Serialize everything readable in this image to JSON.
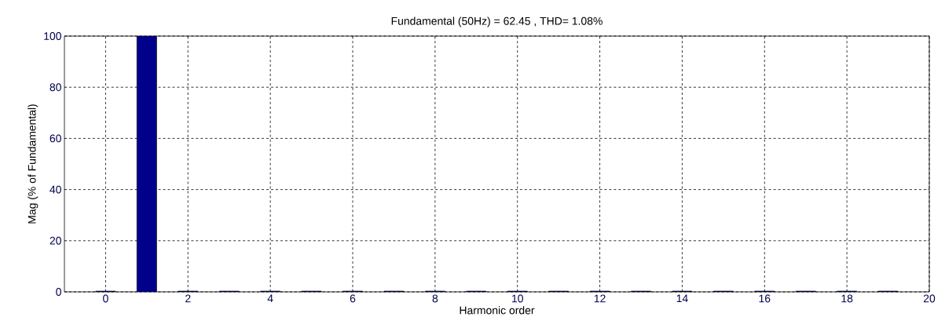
{
  "chart_data": {
    "type": "bar",
    "title": "Fundamental (50Hz) = 62.45 , THD= 1.08%",
    "xlabel": "Harmonic order",
    "ylabel": "Mag (% of Fundamental)",
    "x": [
      0,
      1,
      2,
      3,
      4,
      5,
      6,
      7,
      8,
      9,
      10,
      11,
      12,
      13,
      14,
      15,
      16,
      17,
      18,
      19
    ],
    "values": [
      0.3,
      100,
      0.3,
      0.3,
      0.3,
      0.3,
      0.3,
      0.3,
      0.3,
      0.3,
      0.3,
      0.3,
      0.3,
      0.3,
      0.3,
      0.3,
      0.3,
      0.3,
      0.3,
      0.3
    ],
    "color": "#00008b",
    "xlim": [
      -1,
      20
    ],
    "ylim": [
      0,
      100
    ],
    "xticks": [
      0,
      2,
      4,
      6,
      8,
      10,
      12,
      14,
      16,
      18,
      20
    ],
    "yticks": [
      0,
      20,
      40,
      60,
      80,
      100
    ],
    "grid": true
  }
}
